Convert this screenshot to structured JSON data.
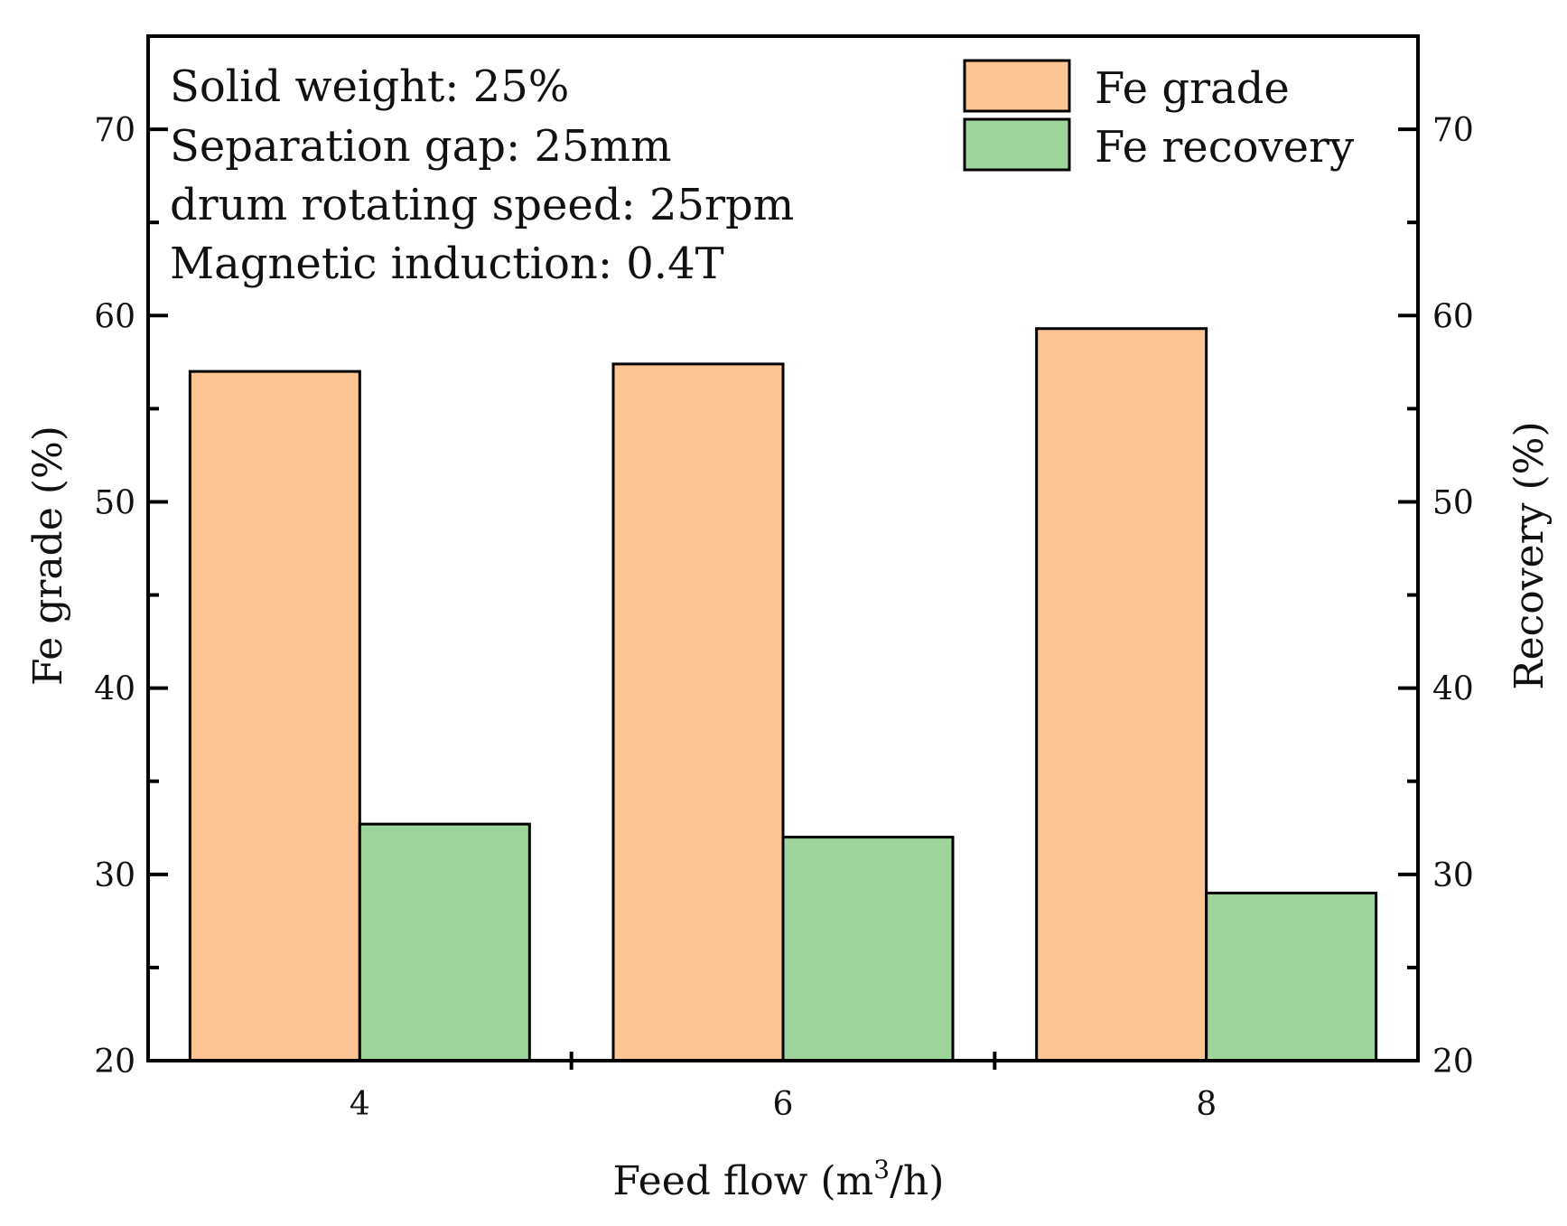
{
  "chart_data": {
    "type": "bar",
    "title": "",
    "xlabel": "Feed flow (m",
    "xlabel_sup": "3",
    "xlabel_end": "/h)",
    "ylabel_left": "Fe grade (%)",
    "ylabel_right": "Recovery (%)",
    "categories": [
      "4",
      "6",
      "8"
    ],
    "ylim": [
      20,
      75
    ],
    "yticks": [
      20,
      30,
      40,
      50,
      60,
      70
    ],
    "series": [
      {
        "name": "Fe grade",
        "color": "#FCC593",
        "values": [
          57.0,
          57.4,
          59.3
        ]
      },
      {
        "name": "Fe recovery",
        "color": "#9ED59A",
        "values": [
          32.7,
          32.0,
          29.0
        ]
      }
    ],
    "annotations": [
      "Solid weight: 25%",
      "Separation gap: 25mm",
      "drum rotating speed: 25rpm",
      "Magnetic induction: 0.4T"
    ],
    "legend_position": "top-right",
    "grid": false
  }
}
